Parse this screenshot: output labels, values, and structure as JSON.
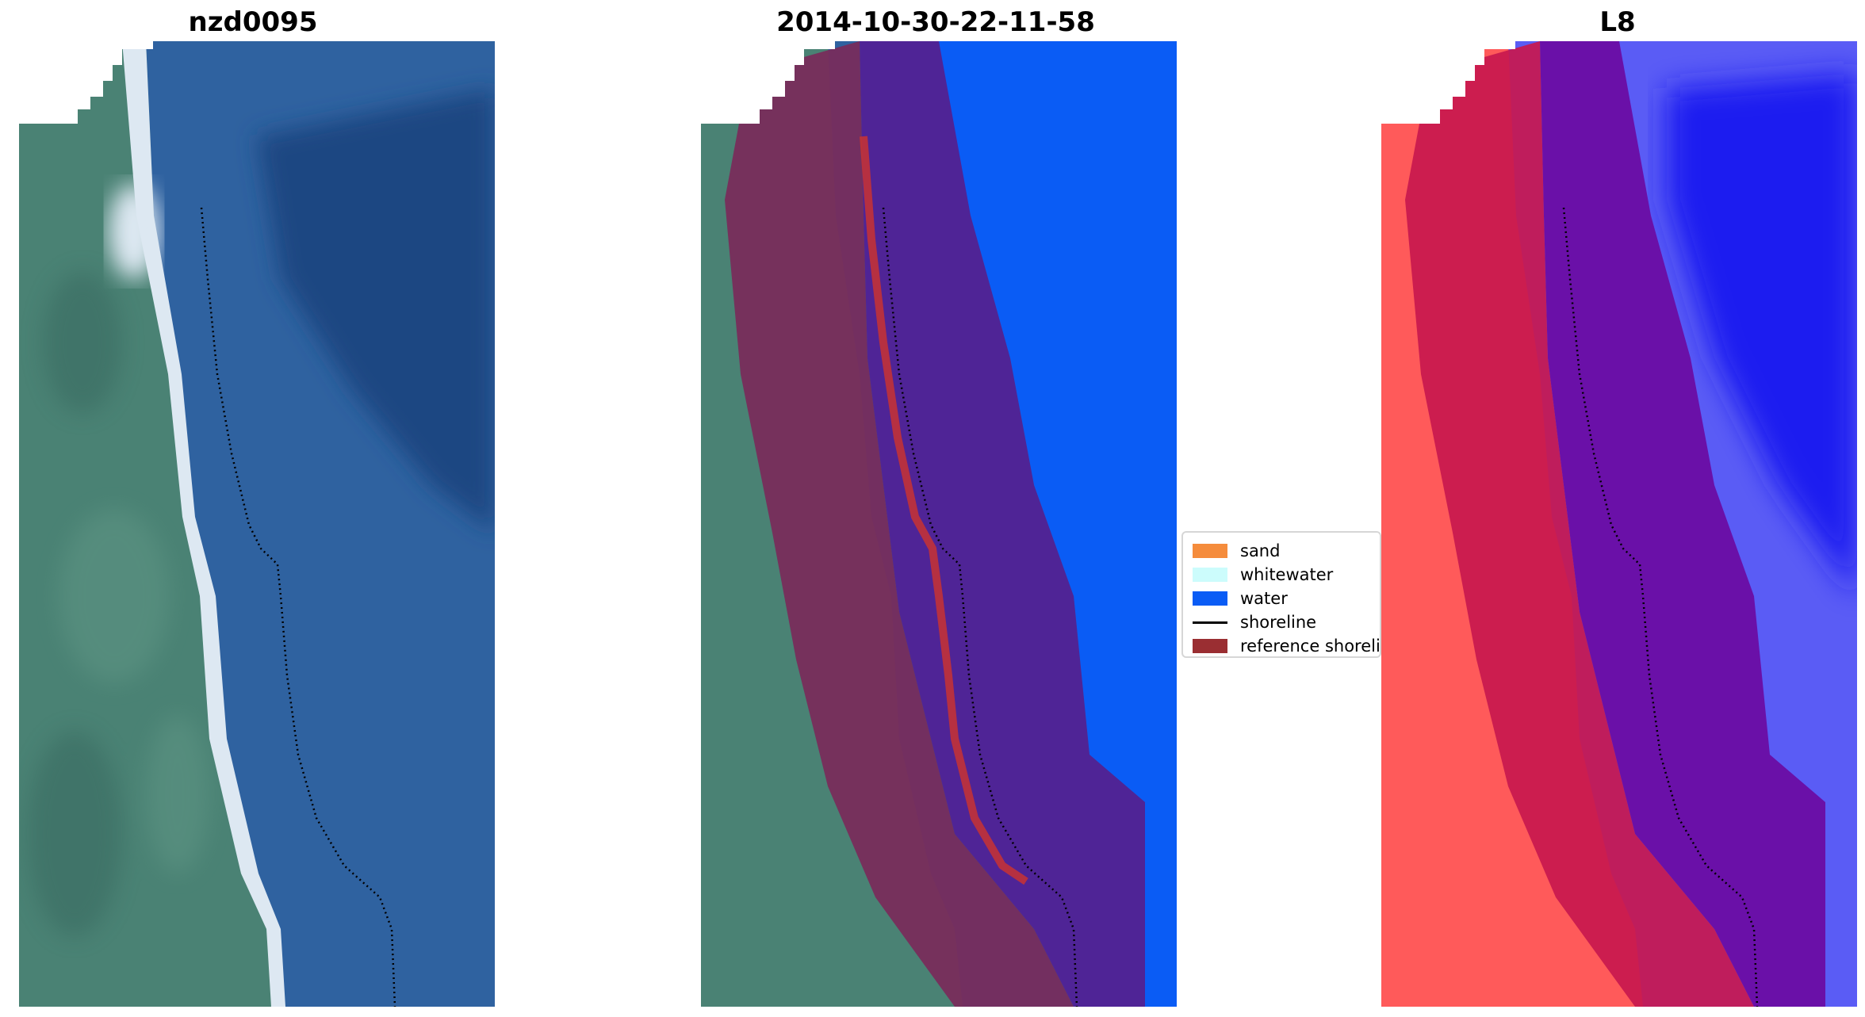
{
  "panels": [
    {
      "title": "nzd0095"
    },
    {
      "title": "2014-10-30-22-11-58"
    },
    {
      "title": "L8"
    }
  ],
  "legend": {
    "items": [
      {
        "label": "sand",
        "color": "#f58c3c",
        "kind": "patch"
      },
      {
        "label": "whitewater",
        "color": "#ccfcfc",
        "kind": "patch"
      },
      {
        "label": "water",
        "color": "#0a5cf5",
        "kind": "patch"
      },
      {
        "label": "shoreline",
        "color": "#000000",
        "kind": "line"
      },
      {
        "label": "reference shoreline",
        "color": "#9a2e32",
        "kind": "patch"
      }
    ]
  },
  "colors": {
    "land": "#4a8274",
    "sea": "#2f62a0",
    "deep_sea": "#1f4682",
    "beach": "#dde8f2",
    "classified_land": "#7a2a5a",
    "classified_water": "#4f2496",
    "open_water": "#0a5cf5",
    "index_land": "#ff5a5a",
    "index_mid": "#c8184e",
    "index_water": "#6a10a8",
    "index_open": "#1c1cf0"
  }
}
